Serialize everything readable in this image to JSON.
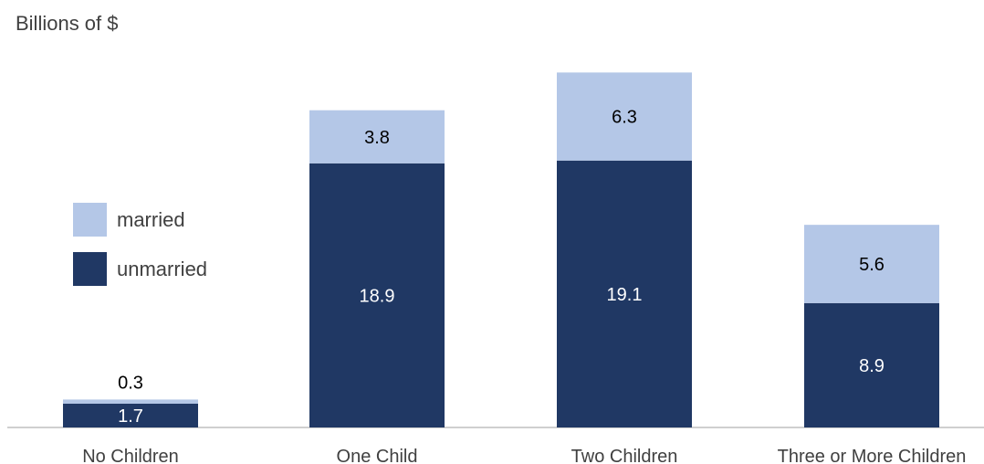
{
  "chart_data": {
    "type": "bar",
    "stacked": true,
    "ylabel": "Billions of $",
    "categories": [
      "No Children",
      "One Child",
      "Two Children",
      "Three or More Children"
    ],
    "series": [
      {
        "name": "unmarried",
        "color": "#203864",
        "values": [
          1.7,
          18.9,
          19.1,
          8.9
        ]
      },
      {
        "name": "married",
        "color": "#b4c7e7",
        "values": [
          0.3,
          3.8,
          6.3,
          5.6
        ]
      }
    ],
    "legend": {
      "placement": "left",
      "order": [
        "married",
        "unmarried"
      ]
    },
    "grid": false
  }
}
